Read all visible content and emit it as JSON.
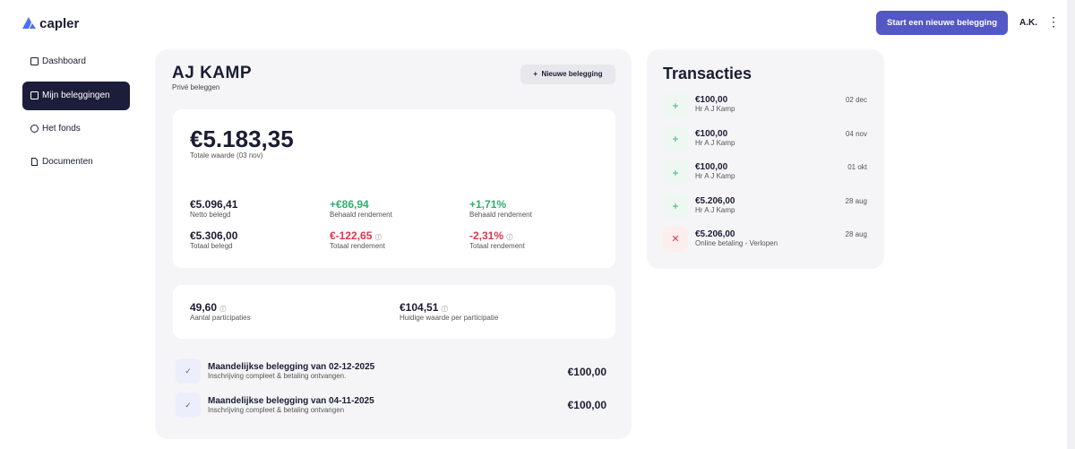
{
  "header": {
    "logo": "capler",
    "cta": "Start een nieuwe belegging",
    "user": "A.K."
  },
  "nav": [
    "Dashboard",
    "Mijn beleggingen",
    "Het fonds",
    "Documenten"
  ],
  "account": {
    "name": "AJ KAMP",
    "subtitle": "Privé beleggen",
    "button": "Nieuwe belegging"
  },
  "summary": {
    "total": "€5.183,35",
    "total_label": "Totale waarde (03 nov)",
    "stats": [
      {
        "value": "€5.096,41",
        "label": "Netto belegd"
      },
      {
        "value": "+€86,94",
        "label": "Behaald rendement"
      },
      {
        "value": "+1,71%",
        "label": "Behaald rendement"
      },
      {
        "value": "€5.306,00",
        "label": "Totaal belegd"
      },
      {
        "value": "€-122,65",
        "label": "Totaal rendement"
      },
      {
        "value": "-2,31%",
        "label": "Totaal rendement"
      }
    ]
  },
  "participations": [
    {
      "value": "49,60",
      "label": "Aantal participaties"
    },
    {
      "value": "€104,51",
      "label": "Huidige waarde per participatie"
    }
  ],
  "payments": [
    {
      "title": "Maandelijkse belegging van 02-12-2025",
      "subtitle": "Inschrijving compleet & betaling ontvangen.",
      "amount": "€100,00"
    },
    {
      "title": "Maandelijkse belegging van 04-11-2025",
      "subtitle": "Inschrijving compleet & betaling ontvangen",
      "amount": "€100,00"
    }
  ],
  "transactions": {
    "title": "Transacties",
    "items": [
      {
        "amount": "€100,00",
        "party": "Hr A J Kamp",
        "date": "02 dec"
      },
      {
        "amount": "€100,00",
        "party": "Hr A J Kamp",
        "date": "04 nov"
      },
      {
        "amount": "€100,00",
        "party": "Hr A J Kamp",
        "date": "01 okt"
      },
      {
        "amount": "€5.206,00",
        "party": "Hr A J Kamp",
        "date": "28 aug"
      },
      {
        "amount": "€5.206,00",
        "party": "Online betaling - Verlopen",
        "date": "28 aug"
      }
    ]
  }
}
